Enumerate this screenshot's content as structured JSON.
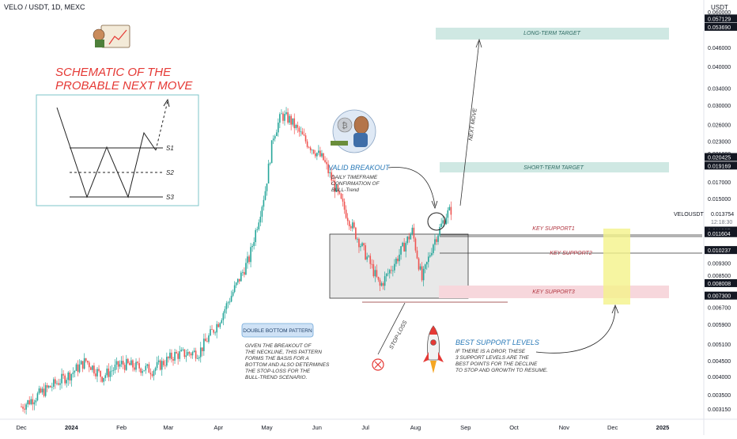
{
  "header": {
    "symbol_line": "VELO / USDT, 1D, MEXC"
  },
  "price_axis": {
    "currency": "USDT",
    "ticks": [
      "0.060000",
      "0.046000",
      "0.040000",
      "0.034000",
      "0.030000",
      "0.026000",
      "0.023000",
      "0.021000",
      "0.017000",
      "0.015000",
      "0.009300",
      "0.008500",
      "0.006700",
      "0.005900",
      "0.005100",
      "0.004500",
      "0.004000",
      "0.003500",
      "0.003150"
    ],
    "badges": [
      "0.057129",
      "0.053690",
      "0.020425",
      "0.019169",
      "0.011827",
      "0.011604",
      "0.010237",
      "0.008008",
      "0.007300"
    ],
    "current_label": "VELOUSDT",
    "current_price": "0.013754",
    "countdown": "12:18:30"
  },
  "time_axis": {
    "labels": [
      "Dec",
      "2024",
      "Feb",
      "Mar",
      "Apr",
      "May",
      "Jun",
      "Jul",
      "Aug",
      "Sep",
      "Oct",
      "Nov",
      "Dec",
      "2025"
    ]
  },
  "annotations": {
    "schematic_title_1": "SCHEMATIC OF THE",
    "schematic_title_2": "PROBABLE NEXT MOVE",
    "s1": "S1",
    "s2": "S2",
    "s3": "S3",
    "long_term": "LONG-TERM TARGET",
    "short_term": "SHORT-TERM TARGET",
    "next_move": "NEXT MOVE",
    "valid_breakout": "VALID BREAKOUT",
    "breakout_desc": [
      "DAILY TIMEFRAME",
      "CONFIRMATION OF",
      "BULL-Trend"
    ],
    "key_support_1": "KEY SUPPORT1",
    "key_support_2": "KEY SUPPORT2",
    "key_support_3": "KEY SUPPORT3",
    "double_bottom": "DOUBLE BOTTOM PATTERN",
    "double_bottom_desc": [
      "GIVEN THE BREAKOUT OF",
      "THE NECKLINE, THIS PATTERN",
      "FORMS THE BASIS FOR A",
      "BOTTOM AND ALSO DETERMINES",
      "THE STOP-LOSS FOR THE",
      "BULL-TREND SCENARIO."
    ],
    "stop_loss": "STOP-LOSS",
    "best_support": "BEST SUPPORT LEVELS",
    "best_support_desc": [
      "IF THERE IS A DROP, THESE",
      "3 SUPPORT LEVELS ARE THE",
      "BEST POINTS FOR THE DECLINE",
      "TO STOP AND GROWTH TO RESUME."
    ]
  },
  "colors": {
    "up": "#26a69a",
    "down": "#ef5350",
    "accent_red": "#e53935",
    "teal_zone": "#cfe8e3",
    "pink_zone": "#f7d7dc",
    "yellow_zone": "#f4f28a",
    "badge_bg": "#131722"
  },
  "chart_data": {
    "type": "candlestick",
    "title": "VELO / USDT, 1D, MEXC",
    "y_scale": "log",
    "ylim": [
      0.00295,
      0.064
    ],
    "x": [
      "2023-12-01",
      "2024-01-01",
      "2024-02-01",
      "2024-03-01",
      "2024-04-01",
      "2024-05-01",
      "2024-06-01",
      "2024-07-01",
      "2024-08-01",
      "2024-09-01",
      "2024-10-01",
      "2024-11-01",
      "2024-12-01",
      "2025-01-01"
    ],
    "approx_close_path": [
      [
        "2023-12-01",
        0.0032
      ],
      [
        "2023-12-15",
        0.0036
      ],
      [
        "2024-01-01",
        0.0041
      ],
      [
        "2024-01-10",
        0.0045
      ],
      [
        "2024-01-20",
        0.004
      ],
      [
        "2024-02-01",
        0.0044
      ],
      [
        "2024-02-20",
        0.0042
      ],
      [
        "2024-03-05",
        0.0047
      ],
      [
        "2024-03-20",
        0.0048
      ],
      [
        "2024-04-01",
        0.006
      ],
      [
        "2024-04-10",
        0.0075
      ],
      [
        "2024-04-20",
        0.0096
      ],
      [
        "2024-04-30",
        0.016
      ],
      [
        "2024-05-05",
        0.024
      ],
      [
        "2024-05-10",
        0.0278
      ],
      [
        "2024-05-15",
        0.027
      ],
      [
        "2024-05-25",
        0.023
      ],
      [
        "2024-06-05",
        0.02
      ],
      [
        "2024-06-15",
        0.015
      ],
      [
        "2024-06-25",
        0.0115
      ],
      [
        "2024-07-05",
        0.009
      ],
      [
        "2024-07-10",
        0.0078
      ],
      [
        "2024-07-20",
        0.0095
      ],
      [
        "2024-07-30",
        0.0118
      ],
      [
        "2024-08-05",
        0.0082
      ],
      [
        "2024-08-12",
        0.0108
      ],
      [
        "2024-08-20",
        0.0133
      ],
      [
        "2024-08-23",
        0.0138
      ]
    ],
    "levels": {
      "long_term_target": [
        0.05369,
        0.057129
      ],
      "short_term_target": [
        0.019169,
        0.020425
      ],
      "key_support1": [
        0.011604,
        0.011827
      ],
      "key_support2": 0.010237,
      "key_support3": [
        0.0073,
        0.008008
      ],
      "current_price": 0.013754
    }
  }
}
